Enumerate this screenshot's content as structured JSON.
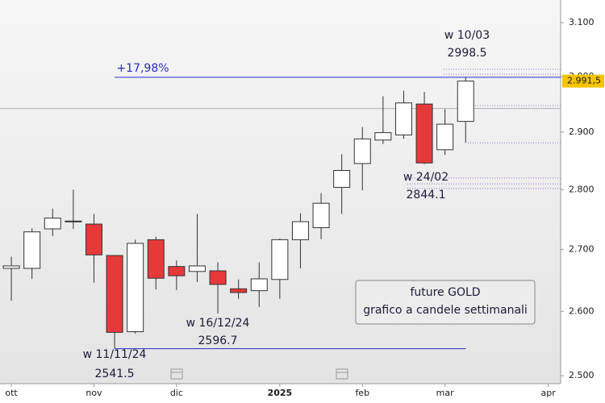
{
  "chart_data": {
    "type": "candlestick",
    "log_scale": true,
    "up_color": "#ffffff",
    "down_color": "#e8393a",
    "x": [
      0,
      1,
      2,
      3,
      4,
      5,
      6,
      7,
      8,
      9,
      10,
      11,
      12,
      13,
      14,
      15,
      16,
      17,
      18,
      19,
      20,
      21,
      22
    ],
    "open": [
      2669,
      2669,
      2734,
      2746,
      2742,
      2690,
      2568,
      2716,
      2672,
      2664,
      2665,
      2636,
      2633,
      2651,
      2716,
      2736,
      2804,
      2845,
      2886,
      2895,
      2950,
      2869,
      2919
    ],
    "high": [
      2688,
      2735,
      2768,
      2800,
      2759,
      2690,
      2716,
      2721,
      2682,
      2759,
      2679,
      2651,
      2679,
      2718,
      2760,
      2794,
      2861,
      2909,
      2964,
      2974,
      2972,
      2941,
      2998.5
    ],
    "low": [
      2617,
      2652,
      2722,
      2734,
      2646,
      2541.5,
      2565,
      2635,
      2634,
      2647,
      2596.7,
      2620,
      2607,
      2620,
      2669,
      2717,
      2759,
      2799,
      2879,
      2888,
      2844.1,
      2860,
      2881
    ],
    "close": [
      2673,
      2729,
      2752,
      2747,
      2691,
      2567,
      2710,
      2653,
      2657,
      2673,
      2643,
      2630,
      2652,
      2716,
      2746,
      2777,
      2833,
      2888,
      2899,
      2952,
      2846,
      2914,
      2991.5
    ],
    "xlim": [
      -0.55,
      26.6
    ],
    "xticks": [
      {
        "value": 0,
        "label": "ott"
      },
      {
        "value": 4,
        "label": "nov"
      },
      {
        "value": 8,
        "label": "dic"
      },
      {
        "value": 13,
        "label": "2025"
      },
      {
        "value": 17,
        "label": "feb"
      },
      {
        "value": 21,
        "label": "mar"
      },
      {
        "value": 26,
        "label": "apr"
      }
    ],
    "ylim": [
      2488,
      3143
    ],
    "yticks": [
      {
        "value": 2500,
        "label": "2.500"
      },
      {
        "value": 2600,
        "label": "2.600"
      },
      {
        "value": 2700,
        "label": "2.700"
      },
      {
        "value": 2800,
        "label": "2.800"
      },
      {
        "value": 2900,
        "label": "2.900"
      },
      {
        "value": 3000,
        "label": "3.000"
      },
      {
        "value": 3100,
        "label": "3.100"
      }
    ],
    "last_price": {
      "value": 2991.5,
      "label": "2.991,5"
    },
    "reference_line": 2942,
    "dotted_levels": [
      3013,
      3004,
      2947,
      2881,
      2820,
      2810,
      2802
    ],
    "annotations": [
      {
        "week": "w 10/03",
        "value": 2998.5
      },
      {
        "week": "w 24/02",
        "value": 2844.1
      },
      {
        "week": "w 16/12/24",
        "value": 2596.7
      },
      {
        "week": "w 11/11/24",
        "value": 2541.5
      }
    ],
    "range_label": "+17,98%",
    "legend_box": [
      "future GOLD",
      "grafico a candele settimanali"
    ]
  }
}
